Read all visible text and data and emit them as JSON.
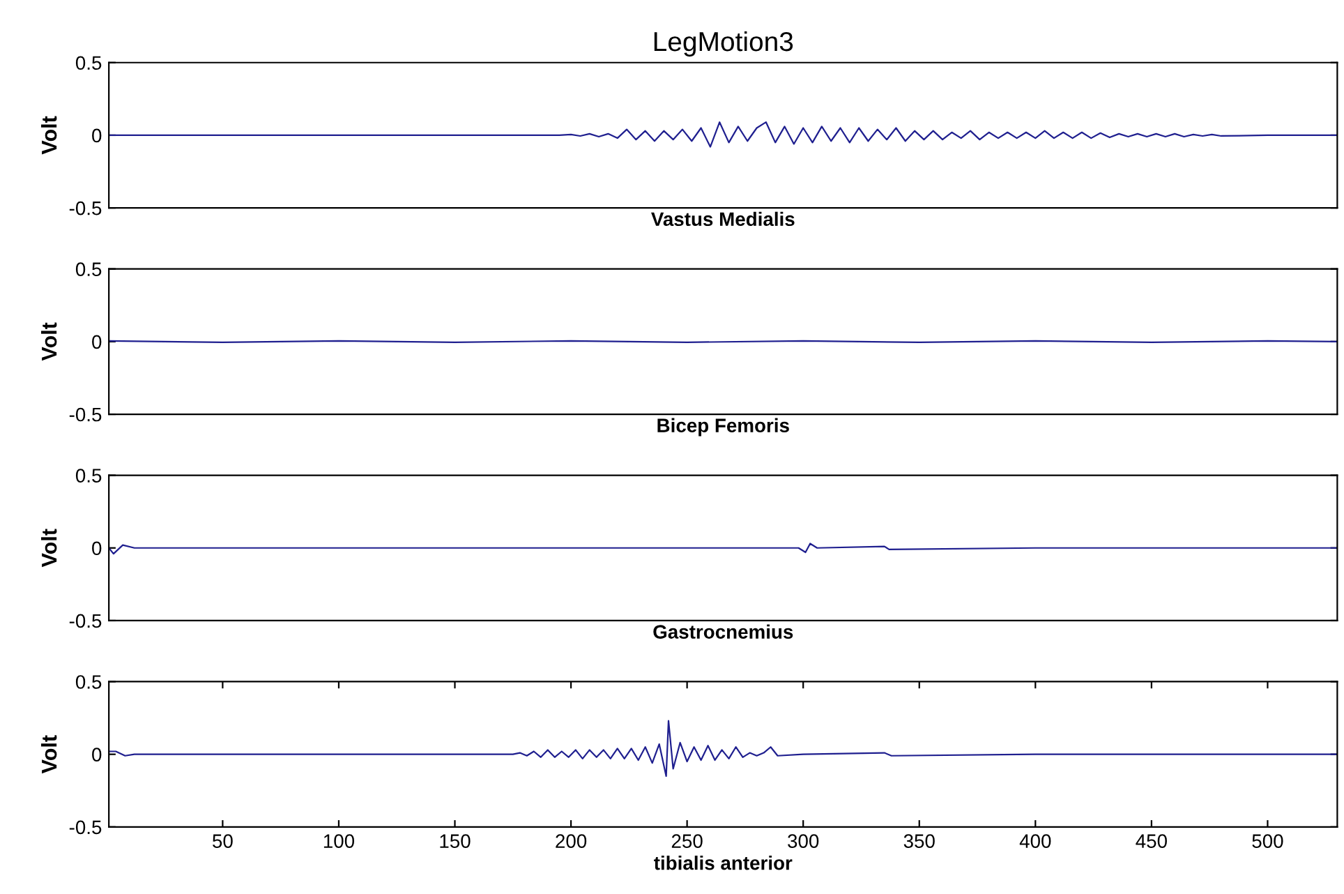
{
  "chart_data": [
    {
      "type": "line",
      "title": "LegMotion3",
      "xlabel": "Vastus Medialis",
      "ylabel": "Volt",
      "xlim": [
        1,
        530
      ],
      "ylim": [
        -0.5,
        0.5
      ],
      "yticks": [
        -0.5,
        0,
        0.5
      ],
      "tick_labels": "y",
      "grid": false,
      "series": [
        {
          "color": "#1f1f8f",
          "x": [
            1,
            50,
            100,
            132,
            150,
            195,
            200,
            204,
            208,
            212,
            216,
            220,
            224,
            228,
            232,
            236,
            240,
            244,
            248,
            252,
            256,
            260,
            264,
            268,
            272,
            276,
            280,
            284,
            288,
            292,
            296,
            300,
            304,
            308,
            312,
            316,
            320,
            324,
            328,
            332,
            336,
            340,
            344,
            348,
            352,
            356,
            360,
            364,
            368,
            372,
            376,
            380,
            384,
            388,
            392,
            396,
            400,
            404,
            408,
            412,
            416,
            420,
            424,
            428,
            432,
            436,
            440,
            444,
            448,
            452,
            456,
            460,
            464,
            468,
            472,
            476,
            480,
            500,
            530
          ],
          "values": [
            0,
            0,
            0,
            0,
            0,
            0,
            0.005,
            -0.005,
            0.01,
            -0.01,
            0.01,
            -0.02,
            0.04,
            -0.03,
            0.03,
            -0.04,
            0.03,
            -0.03,
            0.04,
            -0.04,
            0.05,
            -0.08,
            0.09,
            -0.05,
            0.06,
            -0.04,
            0.05,
            0.09,
            -0.05,
            0.06,
            -0.06,
            0.05,
            -0.05,
            0.06,
            -0.04,
            0.05,
            -0.05,
            0.05,
            -0.04,
            0.04,
            -0.03,
            0.05,
            -0.04,
            0.03,
            -0.03,
            0.03,
            -0.03,
            0.02,
            -0.02,
            0.03,
            -0.03,
            0.02,
            -0.02,
            0.02,
            -0.02,
            0.02,
            -0.02,
            0.03,
            -0.02,
            0.02,
            -0.02,
            0.02,
            -0.02,
            0.015,
            -0.015,
            0.01,
            -0.01,
            0.01,
            -0.01,
            0.01,
            -0.01,
            0.01,
            -0.01,
            0.005,
            -0.005,
            0.005,
            -0.005,
            0,
            0
          ]
        }
      ]
    },
    {
      "type": "line",
      "xlabel": "Bicep Femoris",
      "ylabel": "Volt",
      "xlim": [
        1,
        530
      ],
      "ylim": [
        -0.5,
        0.5
      ],
      "yticks": [
        -0.5,
        0,
        0.5
      ],
      "tick_labels": "y",
      "grid": false,
      "series": [
        {
          "color": "#1f1f8f",
          "x": [
            1,
            50,
            100,
            150,
            200,
            250,
            300,
            350,
            400,
            450,
            500,
            530
          ],
          "values": [
            0.005,
            -0.005,
            0.005,
            -0.005,
            0.005,
            -0.005,
            0.005,
            -0.005,
            0.005,
            -0.005,
            0.005,
            0
          ]
        }
      ]
    },
    {
      "type": "line",
      "xlabel": "Gastrocnemius",
      "ylabel": "Volt",
      "xlim": [
        1,
        530
      ],
      "ylim": [
        -0.5,
        0.5
      ],
      "yticks": [
        -0.5,
        0,
        0.5
      ],
      "tick_labels": "y",
      "grid": false,
      "series": [
        {
          "color": "#1f1f8f",
          "x": [
            1,
            3,
            7,
            12,
            100,
            200,
            298,
            301,
            303,
            306,
            335,
            337,
            400,
            500,
            530
          ],
          "values": [
            0,
            -0.04,
            0.02,
            0,
            0,
            0,
            0,
            -0.03,
            0.03,
            0,
            0.01,
            -0.01,
            0,
            0,
            0
          ]
        }
      ]
    },
    {
      "type": "line",
      "xlabel": "tibialis anterior",
      "ylabel": "Volt",
      "xlim": [
        1,
        530
      ],
      "ylim": [
        -0.5,
        0.5
      ],
      "yticks": [
        -0.5,
        0,
        0.5
      ],
      "xticks": [
        50,
        100,
        150,
        200,
        250,
        300,
        350,
        400,
        450,
        500
      ],
      "grid": false,
      "series": [
        {
          "color": "#1f1f8f",
          "x": [
            1,
            4,
            8,
            12,
            50,
            100,
            150,
            175,
            178,
            181,
            184,
            187,
            190,
            193,
            196,
            199,
            202,
            205,
            208,
            211,
            214,
            217,
            220,
            223,
            226,
            229,
            232,
            235,
            238,
            241,
            242,
            244,
            247,
            250,
            253,
            256,
            259,
            262,
            265,
            268,
            271,
            274,
            277,
            280,
            283,
            286,
            289,
            300,
            335,
            338,
            400,
            500,
            530
          ],
          "values": [
            0.02,
            0.02,
            -0.01,
            0,
            0,
            0,
            0,
            0,
            0.01,
            -0.01,
            0.02,
            -0.02,
            0.03,
            -0.02,
            0.02,
            -0.02,
            0.03,
            -0.03,
            0.03,
            -0.02,
            0.03,
            -0.03,
            0.04,
            -0.03,
            0.04,
            -0.04,
            0.05,
            -0.06,
            0.07,
            -0.15,
            0.23,
            -0.1,
            0.08,
            -0.05,
            0.05,
            -0.04,
            0.06,
            -0.04,
            0.03,
            -0.03,
            0.05,
            -0.02,
            0.01,
            -0.01,
            0.01,
            0.05,
            -0.01,
            0,
            0.01,
            -0.01,
            0,
            0,
            0
          ]
        }
      ]
    }
  ]
}
